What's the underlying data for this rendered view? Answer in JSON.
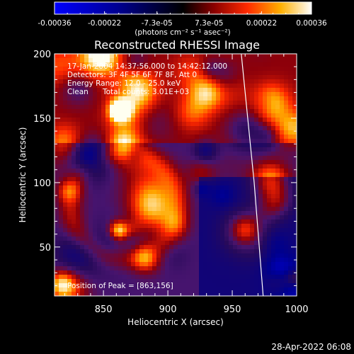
{
  "app": {
    "plot_timestamp": "28-Apr-2022 06:08"
  },
  "colorbar": {
    "tick_labels": [
      "-0.00036",
      "-0.00022",
      "-7.3e-05",
      "7.3e-05",
      "0.00022",
      "0.00036"
    ],
    "range": [
      -0.00036,
      0.00036
    ],
    "unit_label": "(photons cm⁻² s⁻¹ asec⁻²)",
    "colormap": "RHESSI blue-black-red-yellow-white"
  },
  "chart_data": {
    "type": "heatmap",
    "title": "Reconstructed RHESSI Image",
    "xlabel": "Heliocentric X (arcsec)",
    "ylabel": "Heliocentric Y (arcsec)",
    "xlim": [
      812,
      1000
    ],
    "ylim": [
      12,
      200
    ],
    "x_ticks": [
      "850",
      "900",
      "950",
      "1000"
    ],
    "y_ticks": [
      "50",
      "100",
      "150",
      "200"
    ],
    "annotations": {
      "time_range": "17-Jan-2004 14:37:56.000 to 14:42:12.000",
      "detectors": "Detectors: 3F 4F 5F 6F 7F 8F, Att 0",
      "energy": "Energy Range: 12.0 - 25.0 keV",
      "method": "Clean",
      "counts": "Total counts: 3.01E+03",
      "peak": "Position of Peak = [863,156]"
    },
    "peak_position": [
      863,
      156
    ],
    "limb": {
      "description": "solar limb arc",
      "points": [
        [
          957,
          200
        ],
        [
          962,
          150
        ],
        [
          967,
          100
        ],
        [
          971,
          50
        ],
        [
          974,
          12
        ]
      ]
    },
    "grid": false
  }
}
